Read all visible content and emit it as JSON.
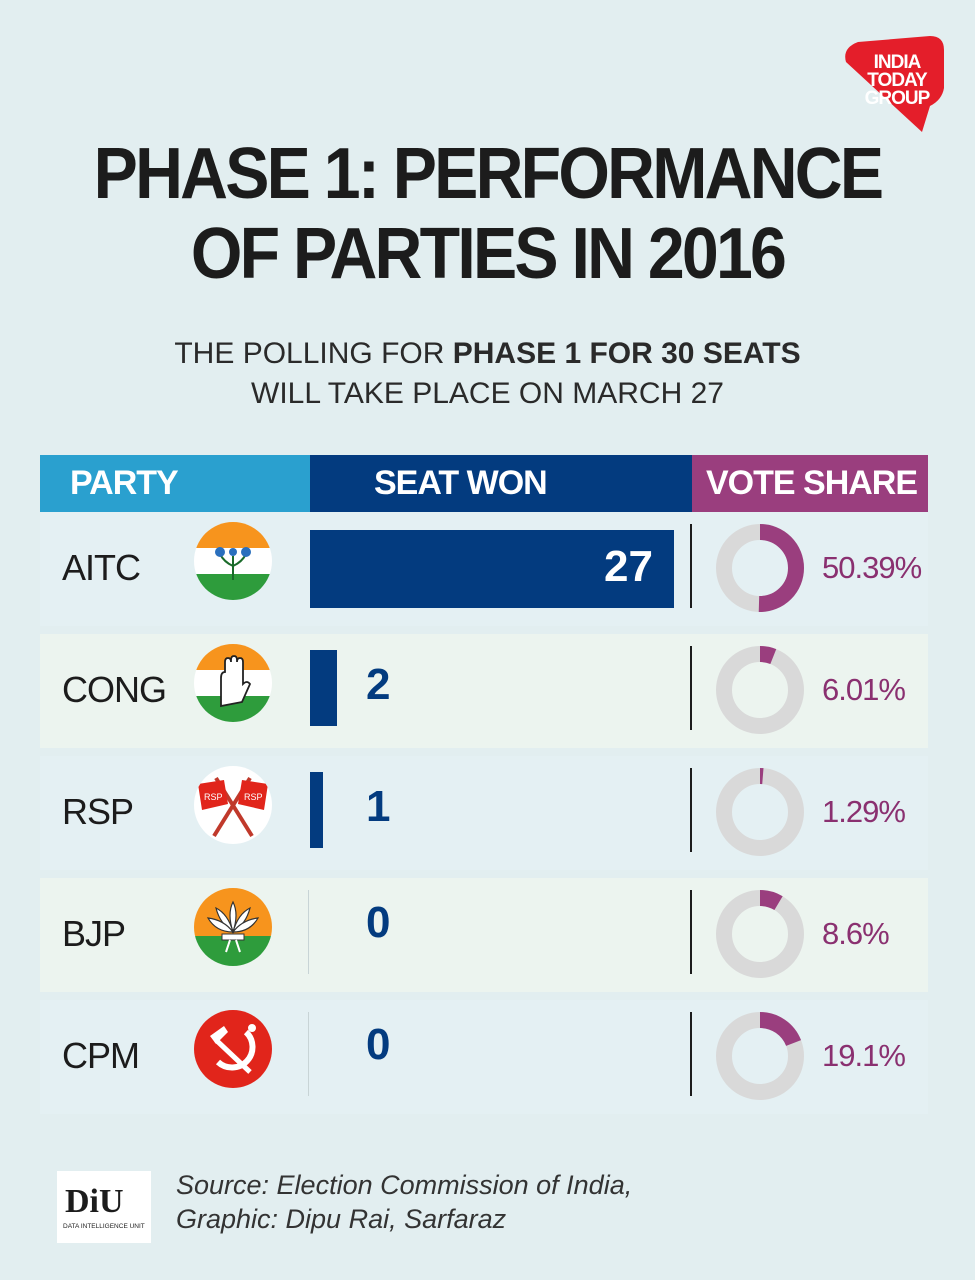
{
  "brand": {
    "line1": "INDIA",
    "line2": "TODAY",
    "line3": "GROUP"
  },
  "title": {
    "line1": "PHASE 1: PERFORMANCE",
    "line2": "OF PARTIES IN 2016"
  },
  "subtitle": {
    "part1": "THE POLLING FOR ",
    "bold": "PHASE 1 FOR 30 SEATS",
    "line2": "WILL TAKE PLACE ON MARCH 27"
  },
  "headers": {
    "party": "PARTY",
    "seats": "SEAT WON",
    "vote": "VOTE SHARE"
  },
  "chart_data": {
    "type": "table",
    "columns": [
      "PARTY",
      "SEAT WON",
      "VOTE SHARE"
    ],
    "rows": [
      {
        "party": "AITC",
        "seats": 27,
        "seats_label": "27",
        "vote_share": 50.39,
        "vote_label": "50.39%"
      },
      {
        "party": "CONG",
        "seats": 2,
        "seats_label": "2",
        "vote_share": 6.01,
        "vote_label": "6.01%"
      },
      {
        "party": "RSP",
        "seats": 1,
        "seats_label": "1",
        "vote_share": 1.29,
        "vote_label": "1.29%"
      },
      {
        "party": "BJP",
        "seats": 0,
        "seats_label": "0",
        "vote_share": 8.6,
        "vote_label": "8.6%"
      },
      {
        "party": "CPM",
        "seats": 0,
        "seats_label": "0",
        "vote_share": 19.1,
        "vote_label": "19.1%"
      }
    ],
    "seats_max": 27
  },
  "icons": [
    "aitc-flower-symbol-icon",
    "cong-hand-symbol-icon",
    "rsp-flag-symbol-icon",
    "bjp-lotus-symbol-icon",
    "cpm-hammer-sickle-icon"
  ],
  "colors": {
    "bar": "#033b7f",
    "donut_fill": "#9a3e7e",
    "donut_track": "#d9d9d9",
    "header_party": "#2aa0cf",
    "header_seats": "#033b7f",
    "header_vote": "#9a3e7e"
  },
  "footer": {
    "diu_logo": "DiU",
    "diu_caption": "DATA INTELLIGENCE UNIT",
    "source_line1": "Source: Election Commission of India,",
    "source_line2": "Graphic: Dipu Rai, Sarfaraz"
  }
}
